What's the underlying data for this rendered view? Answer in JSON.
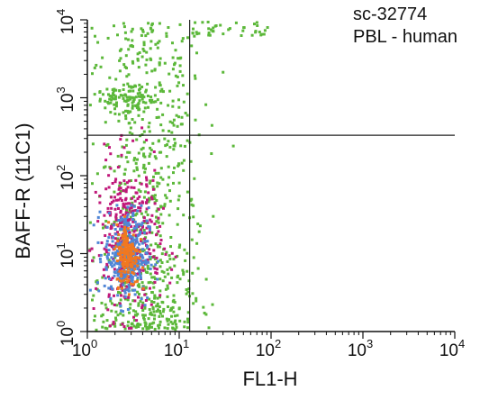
{
  "chart_data": {
    "type": "scatter",
    "subtype": "flow-cytometry-density-dot-plot",
    "xlabel": "FL1-H",
    "ylabel": "BAFF-R (11C1)",
    "x_scale": "log",
    "y_scale": "log",
    "xlim": [
      1,
      10000
    ],
    "ylim": [
      1,
      10000
    ],
    "x_ticks": [
      {
        "value": 1,
        "base": "10",
        "exp": "0"
      },
      {
        "value": 10,
        "base": "10",
        "exp": "1"
      },
      {
        "value": 100,
        "base": "10",
        "exp": "2"
      },
      {
        "value": 1000,
        "base": "10",
        "exp": "3"
      },
      {
        "value": 10000,
        "base": "10",
        "exp": "4"
      }
    ],
    "y_ticks": [
      {
        "value": 1,
        "base": "10",
        "exp": "0"
      },
      {
        "value": 10,
        "base": "10",
        "exp": "1"
      },
      {
        "value": 100,
        "base": "10",
        "exp": "2"
      },
      {
        "value": 1000,
        "base": "10",
        "exp": "3"
      },
      {
        "value": 10000,
        "base": "10",
        "exp": "4"
      }
    ],
    "annotations": [
      "sc-32774",
      "PBL - human"
    ],
    "quadrant_gates": {
      "x": 13,
      "y": 330
    },
    "grid": false,
    "density_colors": {
      "low": "#5cb83a",
      "medium": "#c0187a",
      "high": "#4f86d6",
      "highest": "#f07820"
    },
    "populations": [
      {
        "density": "low",
        "x_range": [
          1,
          20
        ],
        "y_range": [
          1,
          10000
        ]
      },
      {
        "density": "low",
        "x_range": [
          13,
          90
        ],
        "y_range": [
          6500,
          10000
        ]
      },
      {
        "density": "medium",
        "x_range": [
          1.2,
          6
        ],
        "y_range": [
          1.5,
          150
        ]
      },
      {
        "density": "high",
        "x_range": [
          1.5,
          4.5
        ],
        "y_range": [
          2.5,
          40
        ]
      },
      {
        "density": "highest",
        "x_range": [
          2,
          3.5
        ],
        "y_range": [
          4,
          25
        ]
      }
    ]
  }
}
